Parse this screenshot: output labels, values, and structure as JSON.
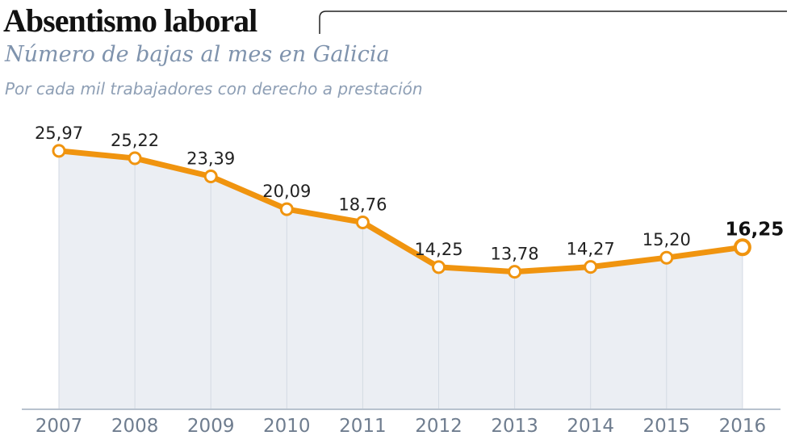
{
  "header": {
    "title": "Absentismo laboral",
    "subtitle": "Número de bajas al mes en Galicia",
    "note": "Por cada mil trabajadores con derecho a prestación"
  },
  "chart_data": {
    "type": "area",
    "title": "Absentismo laboral",
    "subtitle": "Número de bajas al mes en Galicia",
    "ylabel": "",
    "xlabel": "",
    "categories": [
      "2007",
      "2008",
      "2009",
      "2010",
      "2011",
      "2012",
      "2013",
      "2014",
      "2015",
      "2016"
    ],
    "values": [
      25.97,
      25.22,
      23.39,
      20.09,
      18.76,
      14.25,
      13.78,
      14.27,
      15.2,
      16.25
    ],
    "data_labels": [
      "25,97",
      "25,22",
      "23,39",
      "20,09",
      "18,76",
      "14,25",
      "13,78",
      "14,27",
      "15,20",
      "16,25"
    ],
    "ylim": [
      0,
      30
    ],
    "grid": false,
    "colors": {
      "line": "#f0940f",
      "fill": "#ebeef3",
      "marker_fill": "#ffffff",
      "axis": "#b8c2ce",
      "dropline": "#d3dae3"
    }
  }
}
